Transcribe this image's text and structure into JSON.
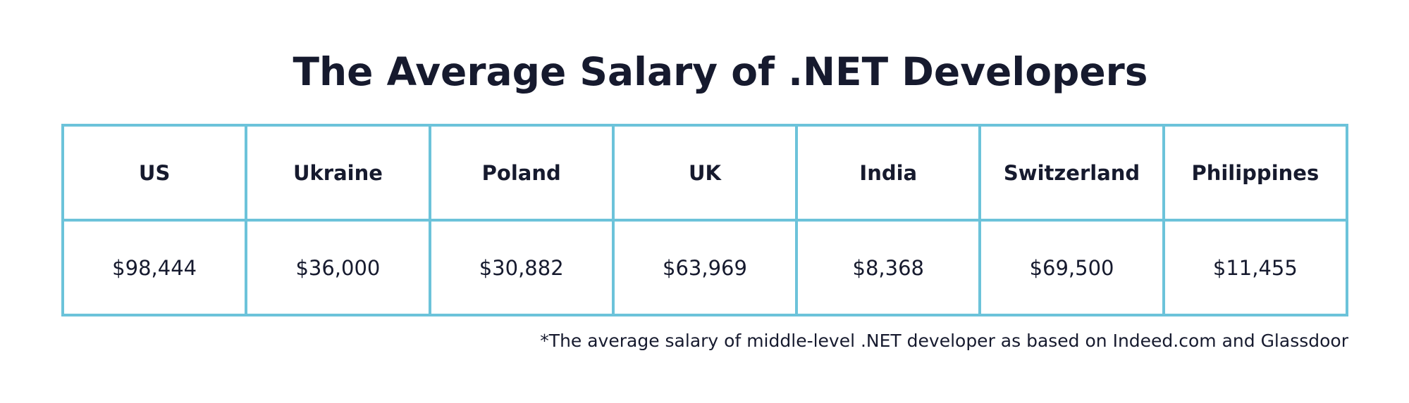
{
  "chart_data": {
    "type": "table",
    "title": "The Average Salary of .NET Developers",
    "columns": [
      "US",
      "Ukraine",
      "Poland",
      "UK",
      "India",
      "Switzerland",
      "Philippines"
    ],
    "values": [
      98444,
      36000,
      30882,
      63969,
      8368,
      69500,
      11455
    ],
    "value_labels": [
      "$98,444",
      "$36,000",
      "$30,882",
      "$63,969",
      "$8,368",
      "$69,500",
      "$11,455"
    ],
    "footnote": "*The average salary of middle-level .NET developer as based on Indeed.com and Glassdoor"
  },
  "colors": {
    "border": "#6cc3da",
    "text": "#161a2e",
    "background": "#ffffff"
  }
}
